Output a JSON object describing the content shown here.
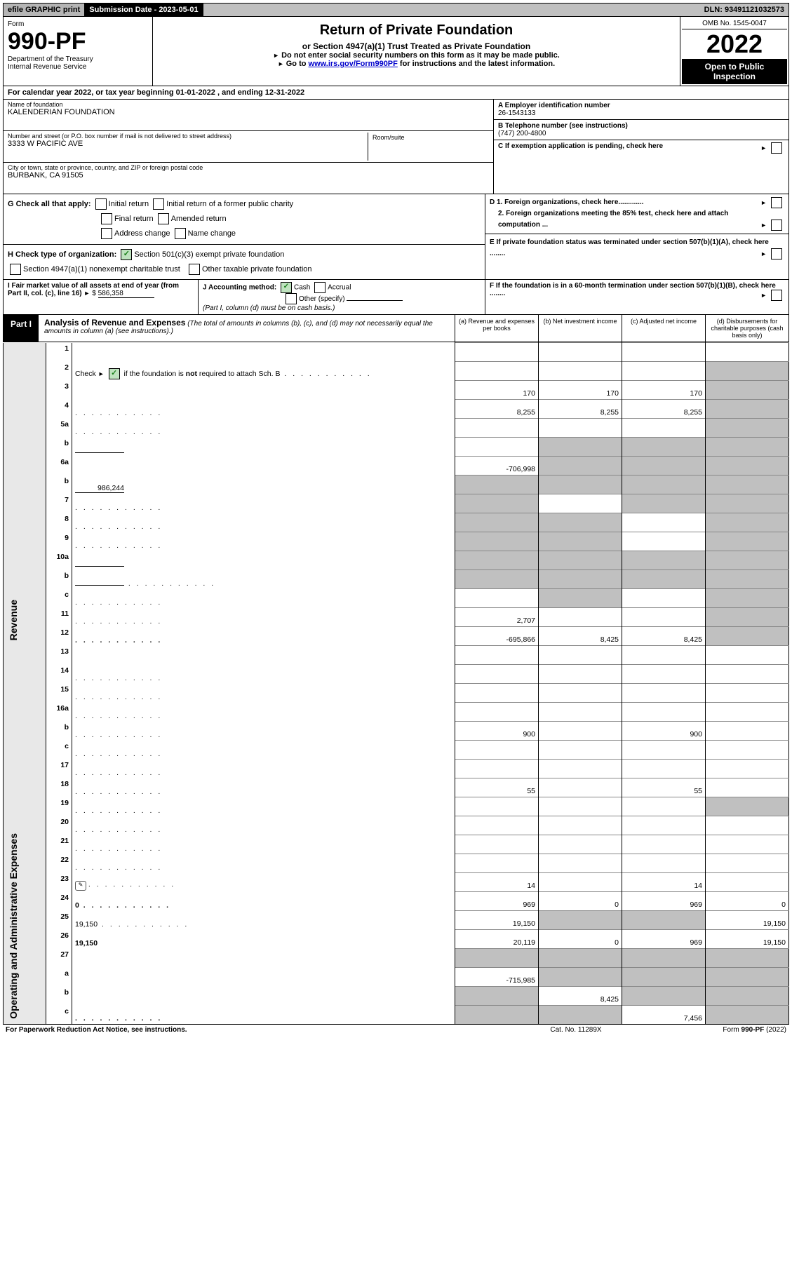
{
  "topbar": {
    "efile": "efile GRAPHIC print",
    "subdate_label": "Submission Date - 2023-05-01",
    "dln": "DLN: 93491121032573"
  },
  "header": {
    "form_label": "Form",
    "form_number": "990-PF",
    "dept": "Department of the Treasury",
    "irs": "Internal Revenue Service",
    "title": "Return of Private Foundation",
    "subtitle": "or Section 4947(a)(1) Trust Treated as Private Foundation",
    "note1": "Do not enter social security numbers on this form as it may be made public.",
    "note2_pre": "Go to ",
    "note2_link": "www.irs.gov/Form990PF",
    "note2_post": " for instructions and the latest information.",
    "omb": "OMB No. 1545-0047",
    "year": "2022",
    "inspect": "Open to Public Inspection"
  },
  "calyear": "For calendar year 2022, or tax year beginning 01-01-2022                               , and ending 12-31-2022",
  "info": {
    "name_label": "Name of foundation",
    "name": "KALENDERIAN FOUNDATION",
    "addr_label": "Number and street (or P.O. box number if mail is not delivered to street address)",
    "addr": "3333 W PACIFIC AVE",
    "room_label": "Room/suite",
    "city_label": "City or town, state or province, country, and ZIP or foreign postal code",
    "city": "BURBANK, CA  91505",
    "A_label": "A Employer identification number",
    "A_val": "26-1543133",
    "B_label": "B Telephone number (see instructions)",
    "B_val": "(747) 200-4800",
    "C_label": "C If exemption application is pending, check here"
  },
  "G": {
    "label": "G Check all that apply:",
    "items": [
      "Initial return",
      "Initial return of a former public charity",
      "Final return",
      "Amended return",
      "Address change",
      "Name change"
    ]
  },
  "H": {
    "label": "H Check type of organization:",
    "items": [
      "Section 501(c)(3) exempt private foundation",
      "Section 4947(a)(1) nonexempt charitable trust",
      "Other taxable private foundation"
    ]
  },
  "DE": {
    "D1": "D 1. Foreign organizations, check here.............",
    "D2": "2. Foreign organizations meeting the 85% test, check here and attach computation ...",
    "E": "E  If private foundation status was terminated under section 507(b)(1)(A), check here ........"
  },
  "I": {
    "label": "I Fair market value of all assets at end of year (from Part II, col. (c), line 16)",
    "val": "586,358"
  },
  "J": {
    "label": "J Accounting method:",
    "cash": "Cash",
    "accrual": "Accrual",
    "other": "Other (specify)",
    "note": "(Part I, column (d) must be on cash basis.)"
  },
  "F": {
    "label": "F  If the foundation is in a 60-month termination under section 507(b)(1)(B), check here ........"
  },
  "part1": {
    "label": "Part I",
    "title": "Analysis of Revenue and Expenses",
    "note": " (The total of amounts in columns (b), (c), and (d) may not necessarily equal the amounts in column (a) (see instructions).)",
    "col_a": "(a)  Revenue and expenses per books",
    "col_b": "(b)  Net investment income",
    "col_c": "(c)  Adjusted net income",
    "col_d": "(d)  Disbursements for charitable purposes (cash basis only)"
  },
  "side_labels": {
    "rev": "Revenue",
    "exp": "Operating and Administrative Expenses"
  },
  "rows": [
    {
      "n": "1",
      "d": "",
      "a": "",
      "b": "",
      "c": ""
    },
    {
      "n": "2",
      "d": "",
      "dots": true,
      "a": "",
      "b": "",
      "c": "",
      "d_grey": true,
      "c_grey": false
    },
    {
      "n": "3",
      "d": "",
      "a": "170",
      "b": "170",
      "c": "170",
      "d_grey": true
    },
    {
      "n": "4",
      "d": "",
      "dots": true,
      "a": "8,255",
      "b": "8,255",
      "c": "8,255",
      "d_grey": true
    },
    {
      "n": "5a",
      "d": "",
      "dots": true,
      "a": "",
      "b": "",
      "c": "",
      "d_grey": true
    },
    {
      "n": "b",
      "d": "",
      "inline": true,
      "a": "",
      "b": "",
      "c": "",
      "b_grey": true,
      "c_grey": true,
      "d_grey": true
    },
    {
      "n": "6a",
      "d": "",
      "a": "-706,998",
      "b": "",
      "c": "",
      "b_grey": true,
      "c_grey": true,
      "d_grey": true
    },
    {
      "n": "b",
      "d": "",
      "inline_val": "986,244",
      "a": "",
      "b": "",
      "c": "",
      "a_grey": true,
      "b_grey": true,
      "c_grey": true,
      "d_grey": true
    },
    {
      "n": "7",
      "d": "",
      "dots": true,
      "a": "",
      "b": "",
      "c": "",
      "a_grey": true,
      "c_grey": true,
      "d_grey": true
    },
    {
      "n": "8",
      "d": "",
      "dots": true,
      "a": "",
      "b": "",
      "c": "",
      "a_grey": true,
      "b_grey": true,
      "d_grey": true
    },
    {
      "n": "9",
      "d": "",
      "dots": true,
      "a": "",
      "b": "",
      "c": "",
      "a_grey": true,
      "b_grey": true,
      "d_grey": true
    },
    {
      "n": "10a",
      "d": "",
      "inline": true,
      "a": "",
      "b": "",
      "c": "",
      "a_grey": true,
      "b_grey": true,
      "c_grey": true,
      "d_grey": true
    },
    {
      "n": "b",
      "d": "",
      "dots": true,
      "inline": true,
      "a": "",
      "b": "",
      "c": "",
      "a_grey": true,
      "b_grey": true,
      "c_grey": true,
      "d_grey": true
    },
    {
      "n": "c",
      "d": "",
      "dots": true,
      "a": "",
      "b": "",
      "c": "",
      "b_grey": true,
      "d_grey": true
    },
    {
      "n": "11",
      "d": "",
      "dots": true,
      "a": "2,707",
      "b": "",
      "c": "",
      "d_grey": true
    },
    {
      "n": "12",
      "d": "",
      "dots": true,
      "a": "-695,866",
      "b": "8,425",
      "c": "8,425",
      "d_grey": true,
      "bold": true
    },
    {
      "n": "13",
      "d": "",
      "a": "",
      "b": "",
      "c": ""
    },
    {
      "n": "14",
      "d": "",
      "dots": true,
      "a": "",
      "b": "",
      "c": ""
    },
    {
      "n": "15",
      "d": "",
      "dots": true,
      "a": "",
      "b": "",
      "c": ""
    },
    {
      "n": "16a",
      "d": "",
      "dots": true,
      "a": "",
      "b": "",
      "c": ""
    },
    {
      "n": "b",
      "d": "",
      "dots": true,
      "a": "900",
      "b": "",
      "c": "900"
    },
    {
      "n": "c",
      "d": "",
      "dots": true,
      "a": "",
      "b": "",
      "c": ""
    },
    {
      "n": "17",
      "d": "",
      "dots": true,
      "a": "",
      "b": "",
      "c": ""
    },
    {
      "n": "18",
      "d": "",
      "dots": true,
      "a": "55",
      "b": "",
      "c": "55"
    },
    {
      "n": "19",
      "d": "",
      "dots": true,
      "a": "",
      "b": "",
      "c": "",
      "d_grey": true
    },
    {
      "n": "20",
      "d": "",
      "dots": true,
      "a": "",
      "b": "",
      "c": ""
    },
    {
      "n": "21",
      "d": "",
      "dots": true,
      "a": "",
      "b": "",
      "c": ""
    },
    {
      "n": "22",
      "d": "",
      "dots": true,
      "a": "",
      "b": "",
      "c": ""
    },
    {
      "n": "23",
      "d": "",
      "dots": true,
      "icon": true,
      "a": "14",
      "b": "",
      "c": "14"
    },
    {
      "n": "24",
      "d": "0",
      "dots": true,
      "a": "969",
      "b": "0",
      "c": "969",
      "bold": true
    },
    {
      "n": "25",
      "d": "19,150",
      "dots": true,
      "a": "19,150",
      "b": "",
      "c": "",
      "b_grey": true,
      "c_grey": true
    },
    {
      "n": "26",
      "d": "19,150",
      "a": "20,119",
      "b": "0",
      "c": "969",
      "bold": true
    },
    {
      "n": "27",
      "d": "",
      "a": "",
      "b": "",
      "c": "",
      "a_grey": true,
      "b_grey": true,
      "c_grey": true,
      "d_grey": true
    },
    {
      "n": "a",
      "d": "",
      "a": "-715,985",
      "b": "",
      "c": "",
      "b_grey": true,
      "c_grey": true,
      "d_grey": true,
      "bold": true
    },
    {
      "n": "b",
      "d": "",
      "a": "",
      "b": "8,425",
      "c": "",
      "a_grey": true,
      "c_grey": true,
      "d_grey": true,
      "bold": true
    },
    {
      "n": "c",
      "d": "",
      "dots": true,
      "a": "",
      "b": "",
      "c": "7,456",
      "a_grey": true,
      "b_grey": true,
      "d_grey": true,
      "bold": true
    }
  ],
  "footer": {
    "left": "For Paperwork Reduction Act Notice, see instructions.",
    "mid": "Cat. No. 11289X",
    "right": "Form 990-PF (2022)"
  }
}
